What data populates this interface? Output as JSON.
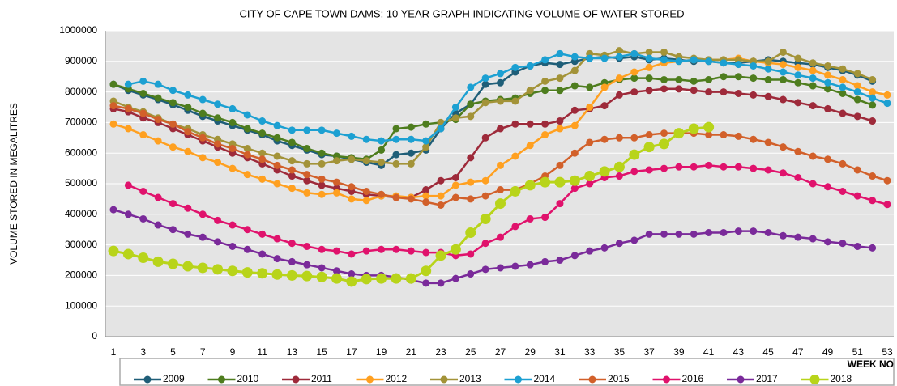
{
  "chart_data": {
    "type": "line",
    "title": "CITY OF CAPE TOWN DAMS: 10 YEAR GRAPH INDICATING VOLUME OF WATER STORED",
    "x_label": "WEEK NO",
    "y_label": "VOLUME STORED IN MEGALITRES",
    "categories": [
      1,
      null,
      3,
      null,
      5,
      null,
      7,
      null,
      9,
      null,
      11,
      null,
      13,
      null,
      15,
      null,
      17,
      null,
      19,
      null,
      21,
      null,
      23,
      null,
      25,
      null,
      27,
      null,
      29,
      null,
      31,
      null,
      33,
      null,
      35,
      null,
      37,
      null,
      39,
      null,
      41,
      null,
      43,
      null,
      45,
      null,
      47,
      null,
      49,
      null,
      51,
      null,
      53
    ],
    "ylim": [
      0,
      1000000
    ],
    "yticks": [
      0,
      100000,
      200000,
      300000,
      400000,
      500000,
      600000,
      700000,
      800000,
      900000,
      1000000
    ],
    "grid": true,
    "legend": "bottom",
    "series": [
      {
        "name": "2009",
        "color": "#1f5e78",
        "values": [
          825000,
          805000,
          790000,
          775000,
          758000,
          740000,
          720000,
          705000,
          690000,
          675000,
          660000,
          640000,
          625000,
          610000,
          595000,
          590000,
          580000,
          570000,
          560000,
          595000,
          600000,
          610000,
          680000,
          730000,
          760000,
          825000,
          830000,
          865000,
          885000,
          895000,
          890000,
          900000,
          910000,
          915000,
          910000,
          915000,
          905000,
          910000,
          905000,
          900000,
          900000,
          895000,
          895000,
          900000,
          905000,
          900000,
          895000,
          890000,
          880000,
          870000,
          855000,
          835000,
          null
        ]
      },
      {
        "name": "2010",
        "color": "#4e7d1e",
        "values": [
          825000,
          810000,
          795000,
          780000,
          765000,
          750000,
          730000,
          715000,
          700000,
          680000,
          665000,
          650000,
          635000,
          615000,
          600000,
          590000,
          585000,
          580000,
          610000,
          680000,
          685000,
          695000,
          700000,
          710000,
          760000,
          770000,
          775000,
          780000,
          795000,
          805000,
          805000,
          820000,
          815000,
          830000,
          840000,
          845000,
          845000,
          840000,
          840000,
          835000,
          840000,
          850000,
          850000,
          845000,
          840000,
          840000,
          830000,
          820000,
          810000,
          795000,
          775000,
          757000,
          null
        ]
      },
      {
        "name": "2011",
        "color": "#9e2a3a",
        "values": [
          745000,
          735000,
          715000,
          700000,
          680000,
          660000,
          640000,
          620000,
          600000,
          585000,
          565000,
          545000,
          525000,
          510000,
          495000,
          485000,
          475000,
          465000,
          460000,
          455000,
          455000,
          480000,
          510000,
          520000,
          585000,
          650000,
          680000,
          695000,
          695000,
          695000,
          705000,
          740000,
          745000,
          755000,
          790000,
          800000,
          805000,
          810000,
          810000,
          805000,
          800000,
          800000,
          795000,
          790000,
          785000,
          775000,
          765000,
          755000,
          745000,
          730000,
          720000,
          705000,
          null
        ]
      },
      {
        "name": "2012",
        "color": "#ffa020",
        "values": [
          695000,
          680000,
          660000,
          640000,
          620000,
          605000,
          585000,
          570000,
          550000,
          530000,
          515000,
          500000,
          485000,
          470000,
          465000,
          470000,
          450000,
          445000,
          460000,
          460000,
          455000,
          460000,
          460000,
          495000,
          505000,
          510000,
          560000,
          590000,
          625000,
          660000,
          680000,
          690000,
          750000,
          815000,
          845000,
          865000,
          880000,
          895000,
          900000,
          905000,
          905000,
          905000,
          910000,
          900000,
          895000,
          890000,
          880000,
          870000,
          855000,
          840000,
          820000,
          800000,
          790000
        ]
      },
      {
        "name": "2013",
        "color": "#a39338",
        "values": [
          770000,
          750000,
          735000,
          715000,
          695000,
          680000,
          660000,
          645000,
          630000,
          615000,
          600000,
          590000,
          575000,
          565000,
          565000,
          575000,
          580000,
          575000,
          570000,
          565000,
          565000,
          620000,
          700000,
          715000,
          720000,
          765000,
          770000,
          770000,
          805000,
          835000,
          845000,
          870000,
          925000,
          920000,
          935000,
          925000,
          930000,
          930000,
          915000,
          910000,
          905000,
          905000,
          905000,
          900000,
          900000,
          930000,
          910000,
          895000,
          885000,
          875000,
          860000,
          840000,
          null
        ]
      },
      {
        "name": "2014",
        "color": "#1ca0d2",
        "values": [
          null,
          825000,
          835000,
          825000,
          805000,
          790000,
          775000,
          760000,
          745000,
          725000,
          705000,
          690000,
          675000,
          675000,
          675000,
          665000,
          655000,
          645000,
          640000,
          645000,
          645000,
          640000,
          680000,
          750000,
          815000,
          845000,
          860000,
          880000,
          885000,
          905000,
          925000,
          915000,
          910000,
          910000,
          915000,
          925000,
          910000,
          905000,
          900000,
          905000,
          900000,
          895000,
          890000,
          885000,
          875000,
          865000,
          855000,
          845000,
          830000,
          815000,
          800000,
          780000,
          763000
        ]
      },
      {
        "name": "2015",
        "color": "#d2602a",
        "values": [
          755000,
          745000,
          730000,
          710000,
          695000,
          670000,
          650000,
          630000,
          615000,
          595000,
          580000,
          560000,
          545000,
          530000,
          515000,
          505000,
          490000,
          475000,
          465000,
          455000,
          450000,
          440000,
          430000,
          455000,
          450000,
          460000,
          480000,
          480000,
          500000,
          525000,
          560000,
          600000,
          635000,
          645000,
          650000,
          650000,
          660000,
          665000,
          665000,
          665000,
          660000,
          660000,
          655000,
          645000,
          635000,
          620000,
          605000,
          590000,
          580000,
          565000,
          545000,
          525000,
          510000
        ]
      },
      {
        "name": "2016",
        "color": "#e0126c",
        "values": [
          null,
          495000,
          475000,
          455000,
          435000,
          420000,
          400000,
          380000,
          365000,
          350000,
          335000,
          320000,
          305000,
          295000,
          285000,
          280000,
          270000,
          280000,
          285000,
          285000,
          280000,
          275000,
          275000,
          265000,
          270000,
          305000,
          325000,
          360000,
          385000,
          390000,
          435000,
          485000,
          500000,
          520000,
          525000,
          540000,
          545000,
          550000,
          555000,
          555000,
          560000,
          555000,
          555000,
          550000,
          545000,
          535000,
          520000,
          500000,
          490000,
          475000,
          460000,
          445000,
          432000
        ]
      },
      {
        "name": "2017",
        "color": "#7a2a9a",
        "values": [
          415000,
          400000,
          385000,
          365000,
          350000,
          335000,
          325000,
          310000,
          295000,
          285000,
          270000,
          255000,
          245000,
          235000,
          225000,
          215000,
          205000,
          200000,
          200000,
          195000,
          185000,
          175000,
          175000,
          190000,
          205000,
          220000,
          225000,
          230000,
          235000,
          245000,
          250000,
          265000,
          280000,
          290000,
          305000,
          315000,
          335000,
          335000,
          335000,
          335000,
          340000,
          340000,
          345000,
          345000,
          340000,
          330000,
          325000,
          320000,
          310000,
          305000,
          295000,
          290000,
          null
        ]
      },
      {
        "name": "2018",
        "color": "#b8d41a",
        "values": [
          280000,
          270000,
          258000,
          245000,
          238000,
          230000,
          225000,
          220000,
          215000,
          210000,
          207000,
          203000,
          200000,
          198000,
          195000,
          190000,
          180000,
          188000,
          190000,
          190000,
          190000,
          215000,
          265000,
          285000,
          340000,
          385000,
          435000,
          475000,
          495000,
          505000,
          505000,
          510000,
          525000,
          540000,
          555000,
          595000,
          620000,
          630000,
          665000,
          680000,
          685000,
          null,
          null,
          null,
          null,
          null,
          null,
          null,
          null,
          null,
          null,
          null,
          null
        ]
      }
    ]
  }
}
